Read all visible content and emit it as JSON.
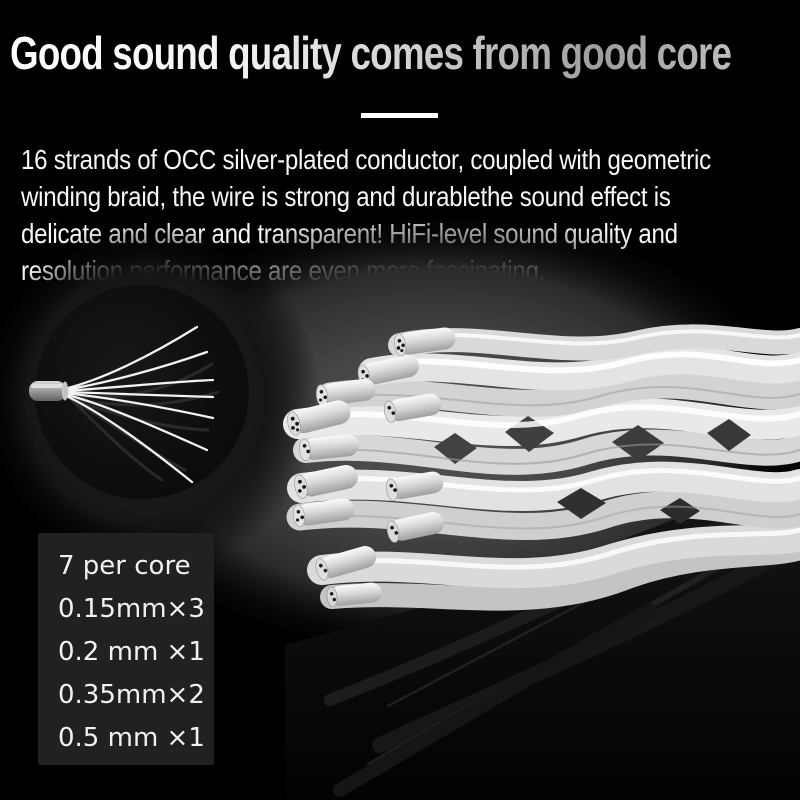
{
  "header": {
    "title": "Good sound quality comes from good core"
  },
  "description": {
    "lines": [
      "16 strands of OCC silver-plated conductor, coupled with geometric",
      "winding braid, the wire is strong and durablethe sound effect is",
      "delicate and clear and transparent! HiFi-level sound quality and",
      "resolution performance are even more fascinating."
    ]
  },
  "specs": {
    "lines": [
      "7 per core",
      "0.15mm×3",
      "0.2 mm ×1",
      "0.35mm×2",
      "0.5 mm ×1"
    ]
  },
  "images": {
    "inset_label": "single-core-strands-closeup",
    "main_label": "braided-silver-plated-cable"
  },
  "colors": {
    "background": "#000000",
    "title_gradient_start": "#fdfdfd",
    "title_gradient_end": "#9e9e9e",
    "divider": "#ffffff",
    "body_text": "#f7f7f7",
    "panel_background": "#212121",
    "photo_glow": "#4e4e4e"
  }
}
